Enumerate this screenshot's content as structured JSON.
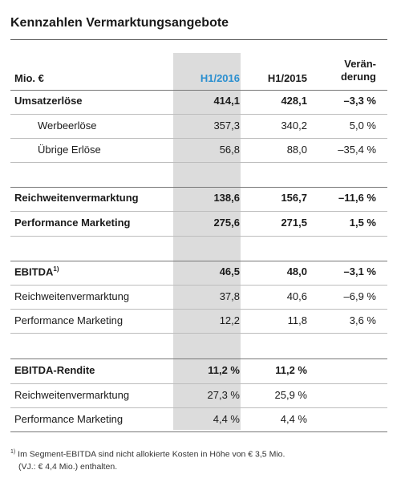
{
  "title": "Kennzahlen Vermarktungsangebote",
  "header": {
    "unit": "Mio. €",
    "col_h1_2016": "H1/2016",
    "col_h1_2015": "H1/2015",
    "col_change_line1": "Verän-",
    "col_change_line2": "derung"
  },
  "rows": [
    {
      "label": "Umsatzerlöse",
      "h1_2016": "414,1",
      "h1_2015": "428,1",
      "change": "–3,3 %"
    },
    {
      "label": "Werbeerlöse",
      "h1_2016": "357,3",
      "h1_2015": "340,2",
      "change": "5,0 %"
    },
    {
      "label": "Übrige Erlöse",
      "h1_2016": "56,8",
      "h1_2015": "88,0",
      "change": "–35,4 %"
    },
    {
      "label": "Reichweitenvermarktung",
      "h1_2016": "138,6",
      "h1_2015": "156,7",
      "change": "–11,6 %"
    },
    {
      "label": "Performance Marketing",
      "h1_2016": "275,6",
      "h1_2015": "271,5",
      "change": "1,5 %"
    },
    {
      "label": "EBITDA",
      "footnote_mark": "1)",
      "h1_2016": "46,5",
      "h1_2015": "48,0",
      "change": "–3,1 %"
    },
    {
      "label": "Reichweitenvermarktung",
      "h1_2016": "37,8",
      "h1_2015": "40,6",
      "change": "–6,9 %"
    },
    {
      "label": "Performance Marketing",
      "h1_2016": "12,2",
      "h1_2015": "11,8",
      "change": "3,6 %"
    },
    {
      "label": "EBITDA-Rendite",
      "h1_2016": "11,2 %",
      "h1_2015": "11,2 %",
      "change": ""
    },
    {
      "label": "Reichweitenvermarktung",
      "h1_2016": "27,3 %",
      "h1_2015": "25,9 %",
      "change": ""
    },
    {
      "label": "Performance Marketing",
      "h1_2016": "4,4 %",
      "h1_2015": "4,4 %",
      "change": ""
    }
  ],
  "footnote": {
    "mark": "1)",
    "line1": "Im Segment-EBITDA sind nicht allokierte Kosten in Höhe von € 3,5 Mio.",
    "line2": "(VJ.: € 4,4 Mio.) enthalten."
  }
}
